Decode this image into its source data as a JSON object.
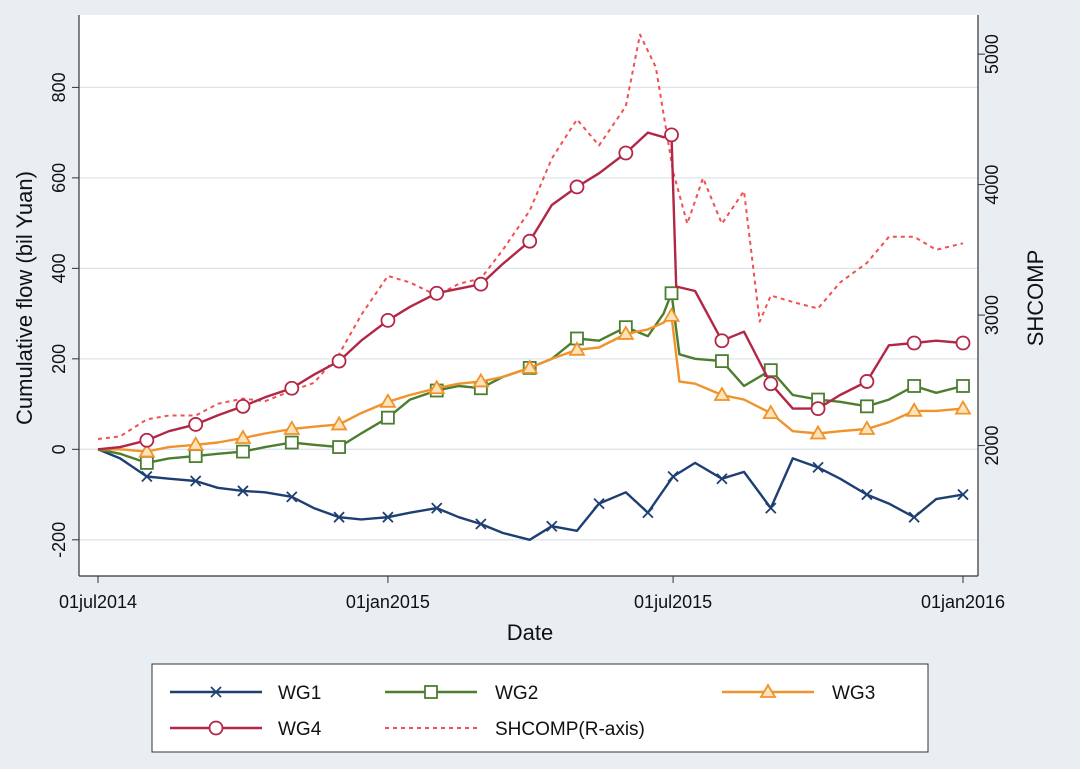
{
  "chart_data": {
    "type": "line",
    "title": "",
    "xlabel": "Date",
    "ylabel": "Cumulative flow (bil Yuan)",
    "y2label": "SHCOMP",
    "x_ticks": [
      "01jul2014",
      "01jan2015",
      "01jul2015",
      "01jan2016"
    ],
    "x_range": [
      "2014-07-01",
      "2016-01-01"
    ],
    "ylim": [
      -280,
      960
    ],
    "y_ticks": [
      -200,
      0,
      200,
      400,
      600,
      800
    ],
    "y2lim": [
      1000,
      5300
    ],
    "y2_ticks": [
      2000,
      3000,
      4000,
      5000
    ],
    "grid": true,
    "legend": "bottom",
    "series": [
      {
        "name": "WG1",
        "axis": "left",
        "color": "#1f3f73",
        "marker": "x",
        "dash": false,
        "x": [
          "2014-07-01",
          "2014-07-15",
          "2014-08-01",
          "2014-08-15",
          "2014-09-01",
          "2014-09-15",
          "2014-10-01",
          "2014-10-15",
          "2014-11-01",
          "2014-11-15",
          "2014-12-01",
          "2014-12-15",
          "2015-01-01",
          "2015-01-15",
          "2015-02-01",
          "2015-02-15",
          "2015-03-01",
          "2015-03-15",
          "2015-04-01",
          "2015-04-15",
          "2015-05-01",
          "2015-05-15",
          "2015-06-01",
          "2015-06-15",
          "2015-07-01",
          "2015-07-15",
          "2015-08-01",
          "2015-08-15",
          "2015-09-01",
          "2015-09-15",
          "2015-10-01",
          "2015-10-15",
          "2015-11-01",
          "2015-11-15",
          "2015-12-01",
          "2015-12-15",
          "2016-01-01"
        ],
        "y": [
          0,
          -20,
          -60,
          -65,
          -70,
          -85,
          -92,
          -95,
          -105,
          -130,
          -150,
          -155,
          -150,
          -140,
          -130,
          -150,
          -165,
          -185,
          -200,
          -170,
          -180,
          -120,
          -95,
          -140,
          -60,
          -30,
          -65,
          -50,
          -130,
          -20,
          -40,
          -65,
          -100,
          -120,
          -150,
          -110,
          -100
        ],
        "marker_x": [
          "2014-08-01",
          "2014-09-01",
          "2014-10-01",
          "2014-11-01",
          "2014-12-01",
          "2015-01-01",
          "2015-02-01",
          "2015-03-01",
          "2015-04-15",
          "2015-05-15",
          "2015-06-15",
          "2015-07-01",
          "2015-08-01",
          "2015-09-01",
          "2015-10-01",
          "2015-11-01",
          "2015-12-01",
          "2016-01-01"
        ]
      },
      {
        "name": "WG2",
        "axis": "left",
        "color": "#4d7d2f",
        "marker": "square",
        "dash": false,
        "x": [
          "2014-07-01",
          "2014-07-15",
          "2014-08-01",
          "2014-08-15",
          "2014-09-01",
          "2014-09-15",
          "2014-10-01",
          "2014-10-15",
          "2014-11-01",
          "2014-11-15",
          "2014-12-01",
          "2014-12-15",
          "2015-01-01",
          "2015-01-15",
          "2015-02-01",
          "2015-02-15",
          "2015-03-01",
          "2015-03-15",
          "2015-04-01",
          "2015-04-15",
          "2015-05-01",
          "2015-05-15",
          "2015-06-01",
          "2015-06-15",
          "2015-06-25",
          "2015-06-30",
          "2015-07-05",
          "2015-07-15",
          "2015-08-01",
          "2015-08-15",
          "2015-09-01",
          "2015-09-15",
          "2015-10-01",
          "2015-10-15",
          "2015-11-01",
          "2015-11-15",
          "2015-12-01",
          "2015-12-15",
          "2016-01-01"
        ],
        "y": [
          0,
          -10,
          -30,
          -20,
          -15,
          -10,
          -5,
          5,
          15,
          10,
          5,
          35,
          70,
          110,
          130,
          140,
          135,
          160,
          180,
          200,
          245,
          240,
          270,
          250,
          300,
          345,
          210,
          200,
          195,
          140,
          175,
          120,
          110,
          105,
          95,
          110,
          140,
          125,
          140
        ],
        "marker_x": [
          "2014-08-01",
          "2014-09-01",
          "2014-10-01",
          "2014-11-01",
          "2014-12-01",
          "2015-01-01",
          "2015-02-01",
          "2015-03-01",
          "2015-04-01",
          "2015-05-01",
          "2015-06-01",
          "2015-06-30",
          "2015-08-01",
          "2015-09-01",
          "2015-10-01",
          "2015-11-01",
          "2015-12-01",
          "2016-01-01"
        ]
      },
      {
        "name": "WG3",
        "axis": "left",
        "color": "#f0932b",
        "marker": "triangle",
        "dash": false,
        "x": [
          "2014-07-01",
          "2014-07-15",
          "2014-08-01",
          "2014-08-15",
          "2014-09-01",
          "2014-09-15",
          "2014-10-01",
          "2014-10-15",
          "2014-11-01",
          "2014-11-15",
          "2014-12-01",
          "2014-12-15",
          "2015-01-01",
          "2015-01-15",
          "2015-02-01",
          "2015-02-15",
          "2015-03-01",
          "2015-03-15",
          "2015-04-01",
          "2015-04-15",
          "2015-05-01",
          "2015-05-15",
          "2015-06-01",
          "2015-06-15",
          "2015-06-25",
          "2015-06-30",
          "2015-07-05",
          "2015-07-15",
          "2015-08-01",
          "2015-08-15",
          "2015-09-01",
          "2015-09-15",
          "2015-10-01",
          "2015-10-15",
          "2015-11-01",
          "2015-11-15",
          "2015-12-01",
          "2015-12-15",
          "2016-01-01"
        ],
        "y": [
          0,
          0,
          -5,
          5,
          10,
          15,
          25,
          35,
          45,
          50,
          55,
          80,
          105,
          120,
          135,
          145,
          150,
          160,
          180,
          200,
          220,
          225,
          255,
          265,
          280,
          295,
          150,
          145,
          120,
          110,
          80,
          40,
          35,
          40,
          45,
          60,
          85,
          85,
          90
        ],
        "marker_x": [
          "2014-08-01",
          "2014-09-01",
          "2014-10-01",
          "2014-11-01",
          "2014-12-01",
          "2015-01-01",
          "2015-02-01",
          "2015-03-01",
          "2015-04-01",
          "2015-05-01",
          "2015-06-01",
          "2015-06-30",
          "2015-08-01",
          "2015-09-01",
          "2015-10-01",
          "2015-11-01",
          "2015-12-01",
          "2016-01-01"
        ]
      },
      {
        "name": "WG4",
        "axis": "left",
        "color": "#b22746",
        "marker": "circle",
        "dash": false,
        "x": [
          "2014-07-01",
          "2014-07-15",
          "2014-08-01",
          "2014-08-15",
          "2014-09-01",
          "2014-09-15",
          "2014-10-01",
          "2014-10-15",
          "2014-11-01",
          "2014-11-15",
          "2014-12-01",
          "2014-12-15",
          "2015-01-01",
          "2015-01-15",
          "2015-02-01",
          "2015-02-15",
          "2015-03-01",
          "2015-03-15",
          "2015-04-01",
          "2015-04-15",
          "2015-05-01",
          "2015-05-15",
          "2015-06-01",
          "2015-06-15",
          "2015-06-25",
          "2015-06-30",
          "2015-07-03",
          "2015-07-15",
          "2015-08-01",
          "2015-08-15",
          "2015-09-01",
          "2015-09-15",
          "2015-10-01",
          "2015-10-15",
          "2015-11-01",
          "2015-11-15",
          "2015-12-01",
          "2015-12-15",
          "2016-01-01"
        ],
        "y": [
          0,
          5,
          20,
          40,
          55,
          75,
          95,
          115,
          135,
          165,
          195,
          240,
          285,
          315,
          345,
          355,
          365,
          410,
          460,
          540,
          580,
          610,
          655,
          700,
          690,
          695,
          360,
          350,
          240,
          260,
          145,
          90,
          90,
          120,
          150,
          230,
          235,
          240,
          235
        ],
        "marker_x": [
          "2014-08-01",
          "2014-09-01",
          "2014-10-01",
          "2014-11-01",
          "2014-12-01",
          "2015-01-01",
          "2015-02-01",
          "2015-03-01",
          "2015-04-01",
          "2015-05-01",
          "2015-06-01",
          "2015-06-30",
          "2015-08-01",
          "2015-09-01",
          "2015-10-01",
          "2015-11-01",
          "2015-12-01",
          "2016-01-01"
        ]
      },
      {
        "name": "SHCOMP(R-axis)",
        "axis": "right",
        "color": "#f05050",
        "marker": "none",
        "dash": true,
        "x": [
          "2014-07-01",
          "2014-07-15",
          "2014-08-01",
          "2014-08-15",
          "2014-09-01",
          "2014-09-15",
          "2014-10-01",
          "2014-10-15",
          "2014-11-01",
          "2014-11-15",
          "2014-12-01",
          "2014-12-15",
          "2015-01-01",
          "2015-01-15",
          "2015-02-01",
          "2015-02-15",
          "2015-03-01",
          "2015-03-15",
          "2015-04-01",
          "2015-04-15",
          "2015-05-01",
          "2015-05-15",
          "2015-06-01",
          "2015-06-10",
          "2015-06-20",
          "2015-07-01",
          "2015-07-10",
          "2015-07-20",
          "2015-08-01",
          "2015-08-15",
          "2015-08-25",
          "2015-09-01",
          "2015-09-15",
          "2015-10-01",
          "2015-10-15",
          "2015-11-01",
          "2015-11-15",
          "2015-12-01",
          "2015-12-15",
          "2016-01-01"
        ],
        "y": [
          2050,
          2070,
          2200,
          2230,
          2230,
          2320,
          2360,
          2340,
          2420,
          2480,
          2700,
          3000,
          3300,
          3250,
          3150,
          3240,
          3280,
          3500,
          3800,
          4200,
          4500,
          4300,
          4600,
          5150,
          4900,
          4100,
          3700,
          4050,
          3700,
          3950,
          2950,
          3150,
          3100,
          3050,
          3250,
          3400,
          3600,
          3600,
          3500,
          3550
        ]
      }
    ]
  }
}
